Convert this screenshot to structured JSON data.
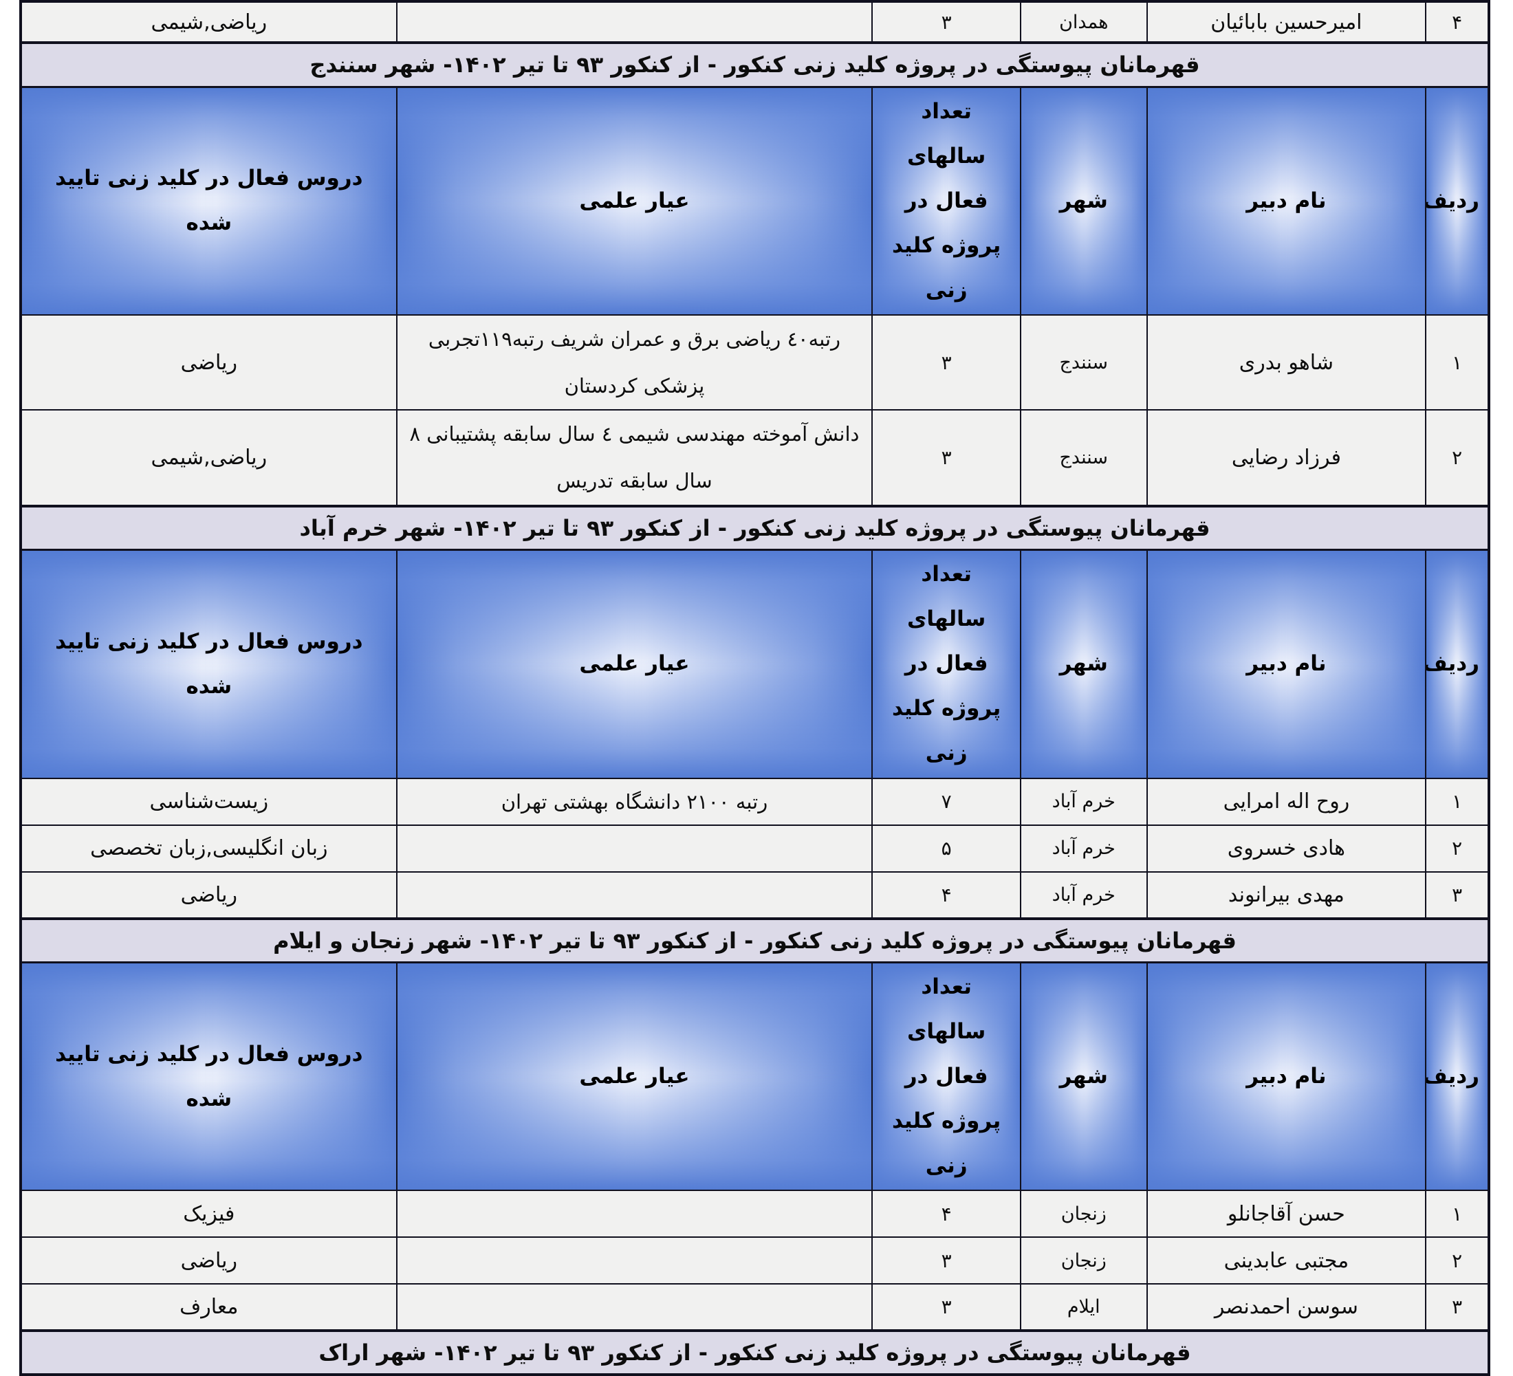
{
  "document_title": "قهرمانان پیوستگی در پروژه کلید زنی کنکور",
  "colors": {
    "line": "#10101e",
    "row_bg": "#f1f1f0",
    "section_bg": "#dcdae8",
    "edge": "#547cd4"
  },
  "columns": {
    "radif": "ردیف",
    "name": "نام دبیر",
    "city": "شهر",
    "years": "تعداد سالهای فعال در پروژه کلید زنی",
    "ayar": "عیار علمی",
    "courses": "دروس فعال در کلید زنی تایید شده"
  },
  "top_row": {
    "radif": "۴",
    "name": "امیرحسین بابائیان",
    "city": "همدان",
    "years": "۳",
    "ayar": "",
    "courses": "ریاضی,شیمی"
  },
  "sections": [
    {
      "title": "قهرمانان پیوستگی در پروژه کلید زنی کنکور  - از کنکور ۹۳ تا تیر ۱۴۰۲- شهر سنندج",
      "header_row": true,
      "tall_rows": true,
      "rows": [
        {
          "radif": "۱",
          "name": "شاهو بدری",
          "city": "سنندج",
          "years": "۳",
          "ayar": "رتبه٤٠  ریاضی برق و عمران شریف  رتبه۱۱۹تجربی پزشکی کردستان",
          "courses": "ریاضی"
        },
        {
          "radif": "۲",
          "name": "فرزاد رضایی",
          "city": "سنندج",
          "years": "۳",
          "ayar": "دانش آموخته مهندسی شیمی   ٤ سال سابقه پشتیبانی   ۸ سال سابقه تدریس",
          "courses": "ریاضی,شیمی"
        }
      ]
    },
    {
      "title": "قهرمانان پیوستگی در پروژه کلید زنی کنکور  - از کنکور ۹۳ تا تیر ۱۴۰۲- شهر خرم آباد",
      "header_row": true,
      "tall_rows": false,
      "rows": [
        {
          "radif": "۱",
          "name": "روح اله امرایی",
          "city": "خرم آباد",
          "years": "۷",
          "ayar": "رتبه ۲۱۰۰  دانشگاه بهشتی تهران",
          "courses": "زیست‌شناسی"
        },
        {
          "radif": "۲",
          "name": "هادی خسروی",
          "city": "خرم آباد",
          "years": "۵",
          "ayar": "",
          "courses": "زبان انگلیسی,زبان تخصصی"
        },
        {
          "radif": "۳",
          "name": "مهدی بیرانوند",
          "city": "خرم آباد",
          "years": "۴",
          "ayar": "",
          "courses": "ریاضی"
        }
      ]
    },
    {
      "title": "قهرمانان پیوستگی در پروژه کلید زنی کنکور  - از کنکور ۹۳ تا تیر ۱۴۰۲- شهر زنجان و ایلام",
      "header_row": true,
      "tall_rows": false,
      "rows": [
        {
          "radif": "۱",
          "name": "حسن آقاجانلو",
          "city": "زنجان",
          "years": "۴",
          "ayar": "",
          "courses": "فیزیک"
        },
        {
          "radif": "۲",
          "name": "مجتبی عابدینی",
          "city": "زنجان",
          "years": "۳",
          "ayar": "",
          "courses": "ریاضی"
        },
        {
          "radif": "۳",
          "name": "سوسن احمدنصر",
          "city": "ایلام",
          "years": "۳",
          "ayar": "",
          "courses": "معارف"
        }
      ]
    },
    {
      "title": "قهرمانان پیوستگی در پروژه کلید زنی کنکور  - از کنکور ۹۳ تا تیر ۱۴۰۲- شهر اراک",
      "header_row": false,
      "tall_rows": false,
      "rows": []
    }
  ]
}
